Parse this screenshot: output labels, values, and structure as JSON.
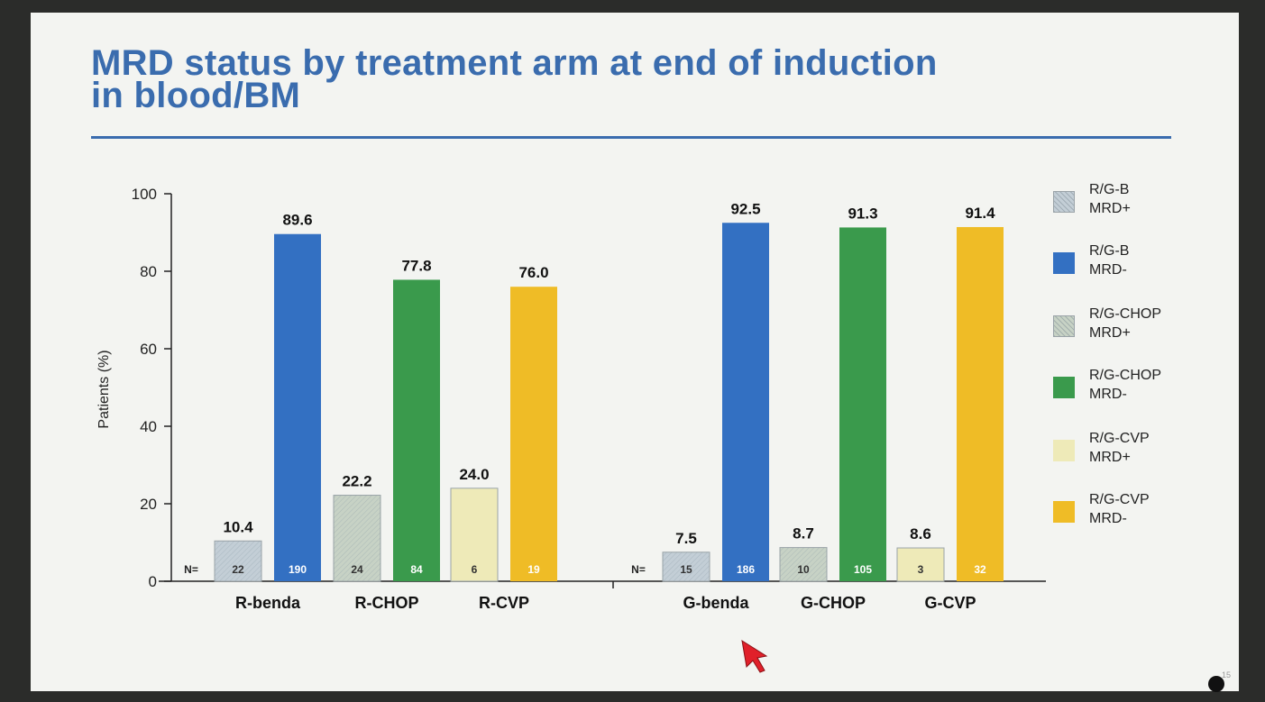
{
  "slide": {
    "title_line1": "MRD status by treatment arm at end of induction",
    "title_line2": "in blood/BM",
    "page_number": "15"
  },
  "chart_data": {
    "type": "bar",
    "ylabel": "Patients (%)",
    "xlabel": "",
    "ylim": [
      0,
      100
    ],
    "yticks": [
      0,
      20,
      40,
      60,
      80,
      100
    ],
    "n_prefix": "N=",
    "groups": [
      {
        "name": "R-benda",
        "bars": [
          {
            "series": "R/G-B MRD+",
            "value": 10.4,
            "label": "10.4",
            "n": "22"
          },
          {
            "series": "R/G-B MRD-",
            "value": 89.6,
            "label": "89.6",
            "n": "190"
          }
        ]
      },
      {
        "name": "R-CHOP",
        "bars": [
          {
            "series": "R/G-CHOP MRD+",
            "value": 22.2,
            "label": "22.2",
            "n": "24"
          },
          {
            "series": "R/G-CHOP MRD-",
            "value": 77.8,
            "label": "77.8",
            "n": "84"
          }
        ]
      },
      {
        "name": "R-CVP",
        "bars": [
          {
            "series": "R/G-CVP MRD+",
            "value": 24.0,
            "label": "24.0",
            "n": "6"
          },
          {
            "series": "R/G-CVP MRD-",
            "value": 76.0,
            "label": "76.0",
            "n": "19"
          }
        ]
      },
      {
        "name": "G-benda",
        "bars": [
          {
            "series": "R/G-B MRD+",
            "value": 7.5,
            "label": "7.5",
            "n": "15"
          },
          {
            "series": "R/G-B MRD-",
            "value": 92.5,
            "label": "92.5",
            "n": "186"
          }
        ]
      },
      {
        "name": "G-CHOP",
        "bars": [
          {
            "series": "R/G-CHOP MRD+",
            "value": 8.7,
            "label": "8.7",
            "n": "10"
          },
          {
            "series": "R/G-CHOP MRD-",
            "value": 91.3,
            "label": "91.3",
            "n": "105"
          }
        ]
      },
      {
        "name": "G-CVP",
        "bars": [
          {
            "series": "R/G-CVP MRD+",
            "value": 8.6,
            "label": "8.6",
            "n": "3"
          },
          {
            "series": "R/G-CVP MRD-",
            "value": 91.4,
            "label": "91.4",
            "n": "32"
          }
        ]
      }
    ],
    "legend": {
      "placement": "right",
      "items": [
        {
          "label": "R/G-B\nMRD+",
          "color": "#c3ced6",
          "hatched": true
        },
        {
          "label": "R/G-B\nMRD-",
          "color": "#3370c2",
          "hatched": false
        },
        {
          "label": "R/G-CHOP\nMRD+",
          "color": "#c7d2c5",
          "hatched": true
        },
        {
          "label": "R/G-CHOP\nMRD-",
          "color": "#3a9a4c",
          "hatched": false
        },
        {
          "label": "R/G-CVP\nMRD+",
          "color": "#eeeab8",
          "hatched": false
        },
        {
          "label": "R/G-CVP\nMRD-",
          "color": "#efbc26",
          "hatched": false
        }
      ]
    },
    "series_colors": {
      "R/G-B MRD+": "#c3ced6",
      "R/G-B MRD-": "#3370c2",
      "R/G-CHOP MRD+": "#c7d2c5",
      "R/G-CHOP MRD-": "#3a9a4c",
      "R/G-CVP MRD+": "#eeeab8",
      "R/G-CVP MRD-": "#efbc26"
    },
    "grid": false
  },
  "colors": {
    "title": "#3a6cae",
    "background": "#f3f4f1"
  }
}
